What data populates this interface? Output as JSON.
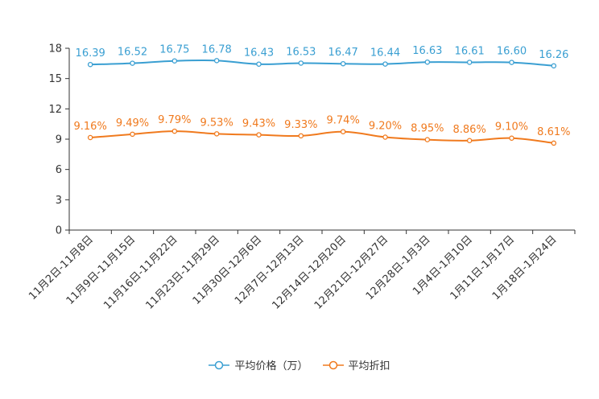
{
  "chart_data": {
    "type": "line",
    "categories": [
      "11月2日-11月8日",
      "11月9日-11月15日",
      "11月16日-11月22日",
      "11月23日-11月29日",
      "11月30日-12月6日",
      "12月7日-12月13日",
      "12月14日-12月20日",
      "12月21日-12月27日",
      "12月28日-1月3日",
      "1月4日-1月10日",
      "1月11日-1月17日",
      "1月18日-1月24日"
    ],
    "series": [
      {
        "name": "平均价格（万）",
        "color": "#3a9fd2",
        "values": [
          16.39,
          16.52,
          16.75,
          16.78,
          16.43,
          16.53,
          16.47,
          16.44,
          16.63,
          16.61,
          16.6,
          16.26
        ],
        "labels": [
          "16.39",
          "16.52",
          "16.75",
          "16.78",
          "16.43",
          "16.53",
          "16.47",
          "16.44",
          "16.63",
          "16.61",
          "16.60",
          "16.26"
        ]
      },
      {
        "name": "平均折扣",
        "color": "#f07a1e",
        "values": [
          9.16,
          9.49,
          9.79,
          9.53,
          9.43,
          9.33,
          9.74,
          9.2,
          8.95,
          8.86,
          9.1,
          8.61
        ],
        "labels": [
          "9.16%",
          "9.49%",
          "9.79%",
          "9.53%",
          "9.43%",
          "9.33%",
          "9.74%",
          "9.20%",
          "8.95%",
          "8.86%",
          "9.10%",
          "8.61%"
        ]
      }
    ],
    "ylim": [
      0,
      18
    ],
    "yticks": [
      0,
      3,
      6,
      9,
      12,
      15,
      18
    ],
    "title": "",
    "xlabel": "",
    "ylabel": "",
    "legend_position": "bottom-center"
  }
}
